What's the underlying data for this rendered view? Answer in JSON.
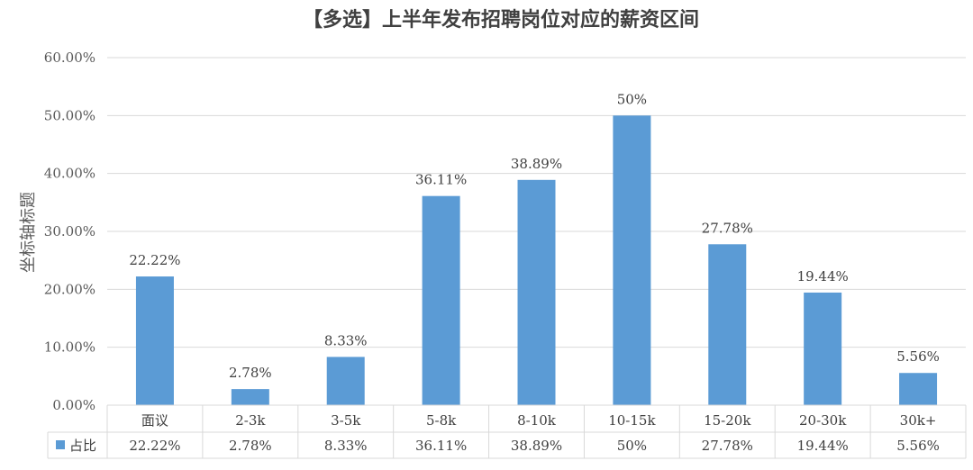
{
  "chart_data": {
    "type": "bar",
    "title": "【多选】上半年发布招聘岗位对应的薪资区间",
    "ylabel": "坐标轴标题",
    "xlabel": "",
    "ylim": [
      0,
      60
    ],
    "yticks": [
      "0.00%",
      "10.00%",
      "20.00%",
      "30.00%",
      "40.00%",
      "50.00%",
      "60.00%"
    ],
    "grid": true,
    "categories": [
      "面议",
      "2-3k",
      "3-5k",
      "5-8k",
      "8-10k",
      "10-15k",
      "15-20k",
      "20-30k",
      "30k+"
    ],
    "series": [
      {
        "name": "占比",
        "values": [
          22.22,
          2.78,
          8.33,
          36.11,
          38.89,
          50,
          27.78,
          19.44,
          5.56
        ],
        "labels": [
          "22.22%",
          "2.78%",
          "8.33%",
          "36.11%",
          "38.89%",
          "50%",
          "27.78%",
          "19.44%",
          "5.56%"
        ],
        "color": "#5b9bd5"
      }
    ],
    "data_table": true,
    "legend_position": "data-table"
  }
}
